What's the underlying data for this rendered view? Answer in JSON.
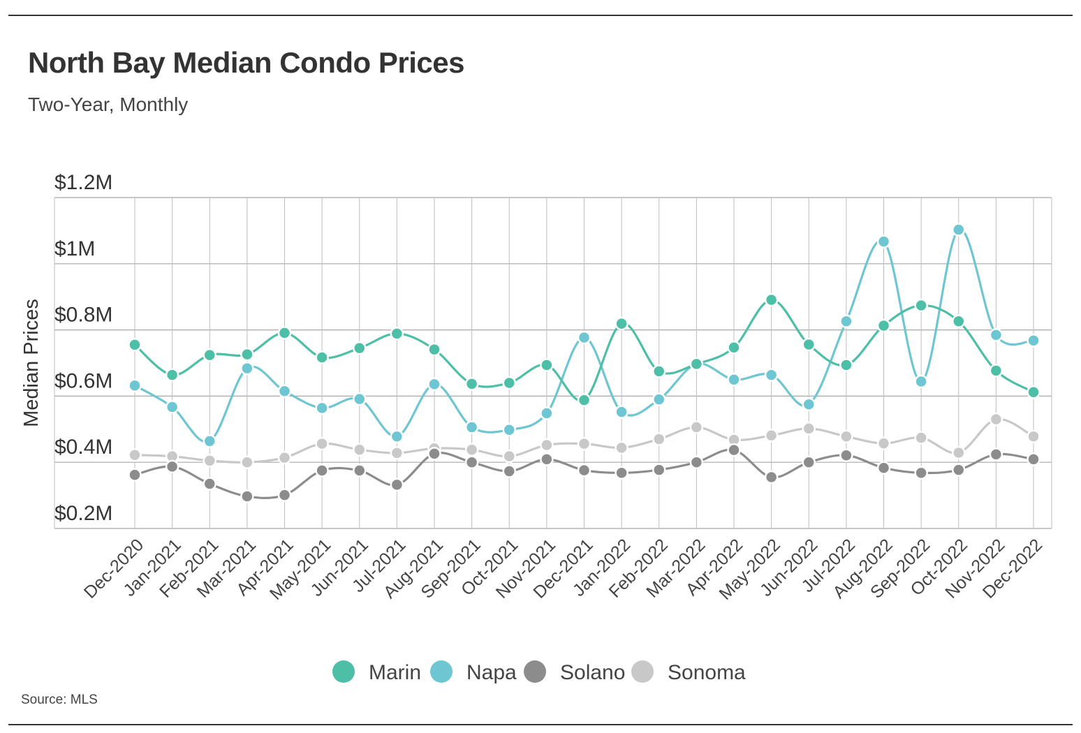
{
  "header": {
    "title": "North Bay Median Condo Prices",
    "subtitle": "Two-Year, Monthly"
  },
  "footer": {
    "source": "Source:  MLS"
  },
  "chart_data": {
    "type": "line",
    "title": "North Bay Median Condo Prices",
    "subtitle": "Two-Year, Monthly",
    "xlabel": "",
    "ylabel": "Median Prices",
    "ylim": [
      0.2,
      1.2
    ],
    "y_ticks": [
      1.2,
      1.0,
      0.8,
      0.6,
      0.4,
      0.2
    ],
    "y_tick_labels": [
      "$1.2M",
      "$1M",
      "$0.8M",
      "$0.6M",
      "$0.4M",
      "$0.2M"
    ],
    "grid": true,
    "legend_position": "bottom-center",
    "categories": [
      "Dec-2020",
      "Jan-2021",
      "Feb-2021",
      "Mar-2021",
      "Apr-2021",
      "May-2021",
      "Jun-2021",
      "Jul-2021",
      "Aug-2021",
      "Sep-2021",
      "Oct-2021",
      "Nov-2021",
      "Dec-2021",
      "Jan-2022",
      "Feb-2022",
      "Mar-2022",
      "Apr-2022",
      "May-2022",
      "Jun-2022",
      "Jul-2022",
      "Aug-2022",
      "Sep-2022",
      "Oct-2022",
      "Nov-2022",
      "Dec-2022"
    ],
    "series": [
      {
        "name": "Marin",
        "color": "#4cbfa6",
        "values": [
          0.755,
          0.664,
          0.724,
          0.726,
          0.791,
          0.717,
          0.745,
          0.789,
          0.741,
          0.637,
          0.64,
          0.694,
          0.588,
          0.819,
          0.675,
          0.697,
          0.747,
          0.891,
          0.756,
          0.694,
          0.813,
          0.874,
          0.826,
          0.677,
          0.612
        ]
      },
      {
        "name": "Napa",
        "color": "#6ec6d2",
        "values": [
          0.632,
          0.567,
          0.464,
          0.684,
          0.615,
          0.564,
          0.591,
          0.478,
          0.636,
          0.506,
          0.498,
          0.548,
          0.777,
          0.552,
          0.59,
          0.697,
          0.65,
          0.664,
          0.575,
          0.826,
          1.067,
          0.644,
          1.103,
          0.785,
          0.768
        ]
      },
      {
        "name": "Solano",
        "color": "#8c8c8c",
        "values": [
          0.362,
          0.387,
          0.335,
          0.297,
          0.301,
          0.375,
          0.375,
          0.332,
          0.426,
          0.4,
          0.373,
          0.409,
          0.376,
          0.368,
          0.377,
          0.4,
          0.437,
          0.355,
          0.4,
          0.421,
          0.383,
          0.368,
          0.377,
          0.424,
          0.409
        ]
      },
      {
        "name": "Sonoma",
        "color": "#c8c8c8",
        "values": [
          0.422,
          0.418,
          0.405,
          0.4,
          0.414,
          0.456,
          0.438,
          0.428,
          0.442,
          0.438,
          0.418,
          0.452,
          0.456,
          0.444,
          0.47,
          0.506,
          0.468,
          0.481,
          0.502,
          0.478,
          0.457,
          0.474,
          0.429,
          0.53,
          0.478
        ]
      }
    ]
  }
}
